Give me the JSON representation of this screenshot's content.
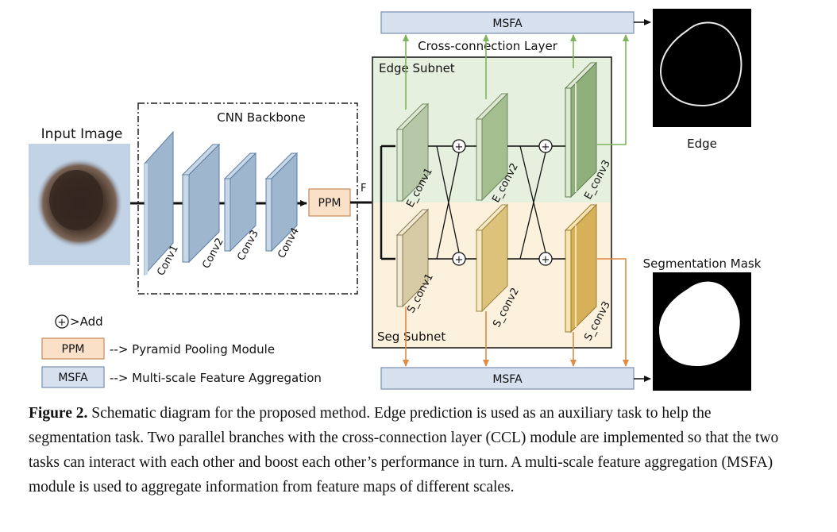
{
  "input": {
    "label": "Input Image"
  },
  "backbone": {
    "title": "CNN Backbone",
    "convs": [
      "Conv1",
      "Conv2",
      "Conv3",
      "Conv4"
    ]
  },
  "ppm": {
    "label": "PPM",
    "feature_label": "F"
  },
  "msfa": {
    "top_label": "MSFA",
    "bottom_label": "MSFA"
  },
  "ccl": {
    "title": "Cross-connection Layer",
    "edge_subnet": "Edge Subnet",
    "seg_subnet": "Seg Subnet",
    "edge_convs": [
      "E_conv1",
      "E_conv2",
      "E_conv3"
    ],
    "seg_convs": [
      "S_conv1",
      "S_conv2",
      "S_conv3"
    ],
    "add_symbol": "+"
  },
  "outputs": {
    "edge": "Edge",
    "mask": "Segmentation Mask"
  },
  "legend": {
    "add": ">Add",
    "ppm_box": "PPM",
    "ppm_desc": "--> Pyramid Pooling Module",
    "msfa_box": "MSFA",
    "msfa_desc": "--> Multi-scale Feature Aggregation"
  },
  "caption": {
    "prefix": "Figure 2.",
    "text": " Schematic diagram for the proposed method. Edge prediction is used as an auxiliary task to help the segmentation task. Two parallel branches with the cross-connection layer (CCL) module are implemented so that the two tasks can interact with each other and boost each other’s performance in turn. A multi-scale feature aggregation (MSFA) module is used to aggregate information from feature maps of different scales."
  },
  "colors": {
    "backbone_block": "#9fb6cf",
    "ppm_fill": "#fbe0c8",
    "msfa_fill": "#d6e0ef",
    "edge_bg": "#e6f0de",
    "seg_bg": "#fbf1dd",
    "green_arrow": "#7cb35b",
    "orange_arrow": "#e08a44",
    "edge_block": "#8fb07a",
    "seg_block": "#d7b15a"
  }
}
